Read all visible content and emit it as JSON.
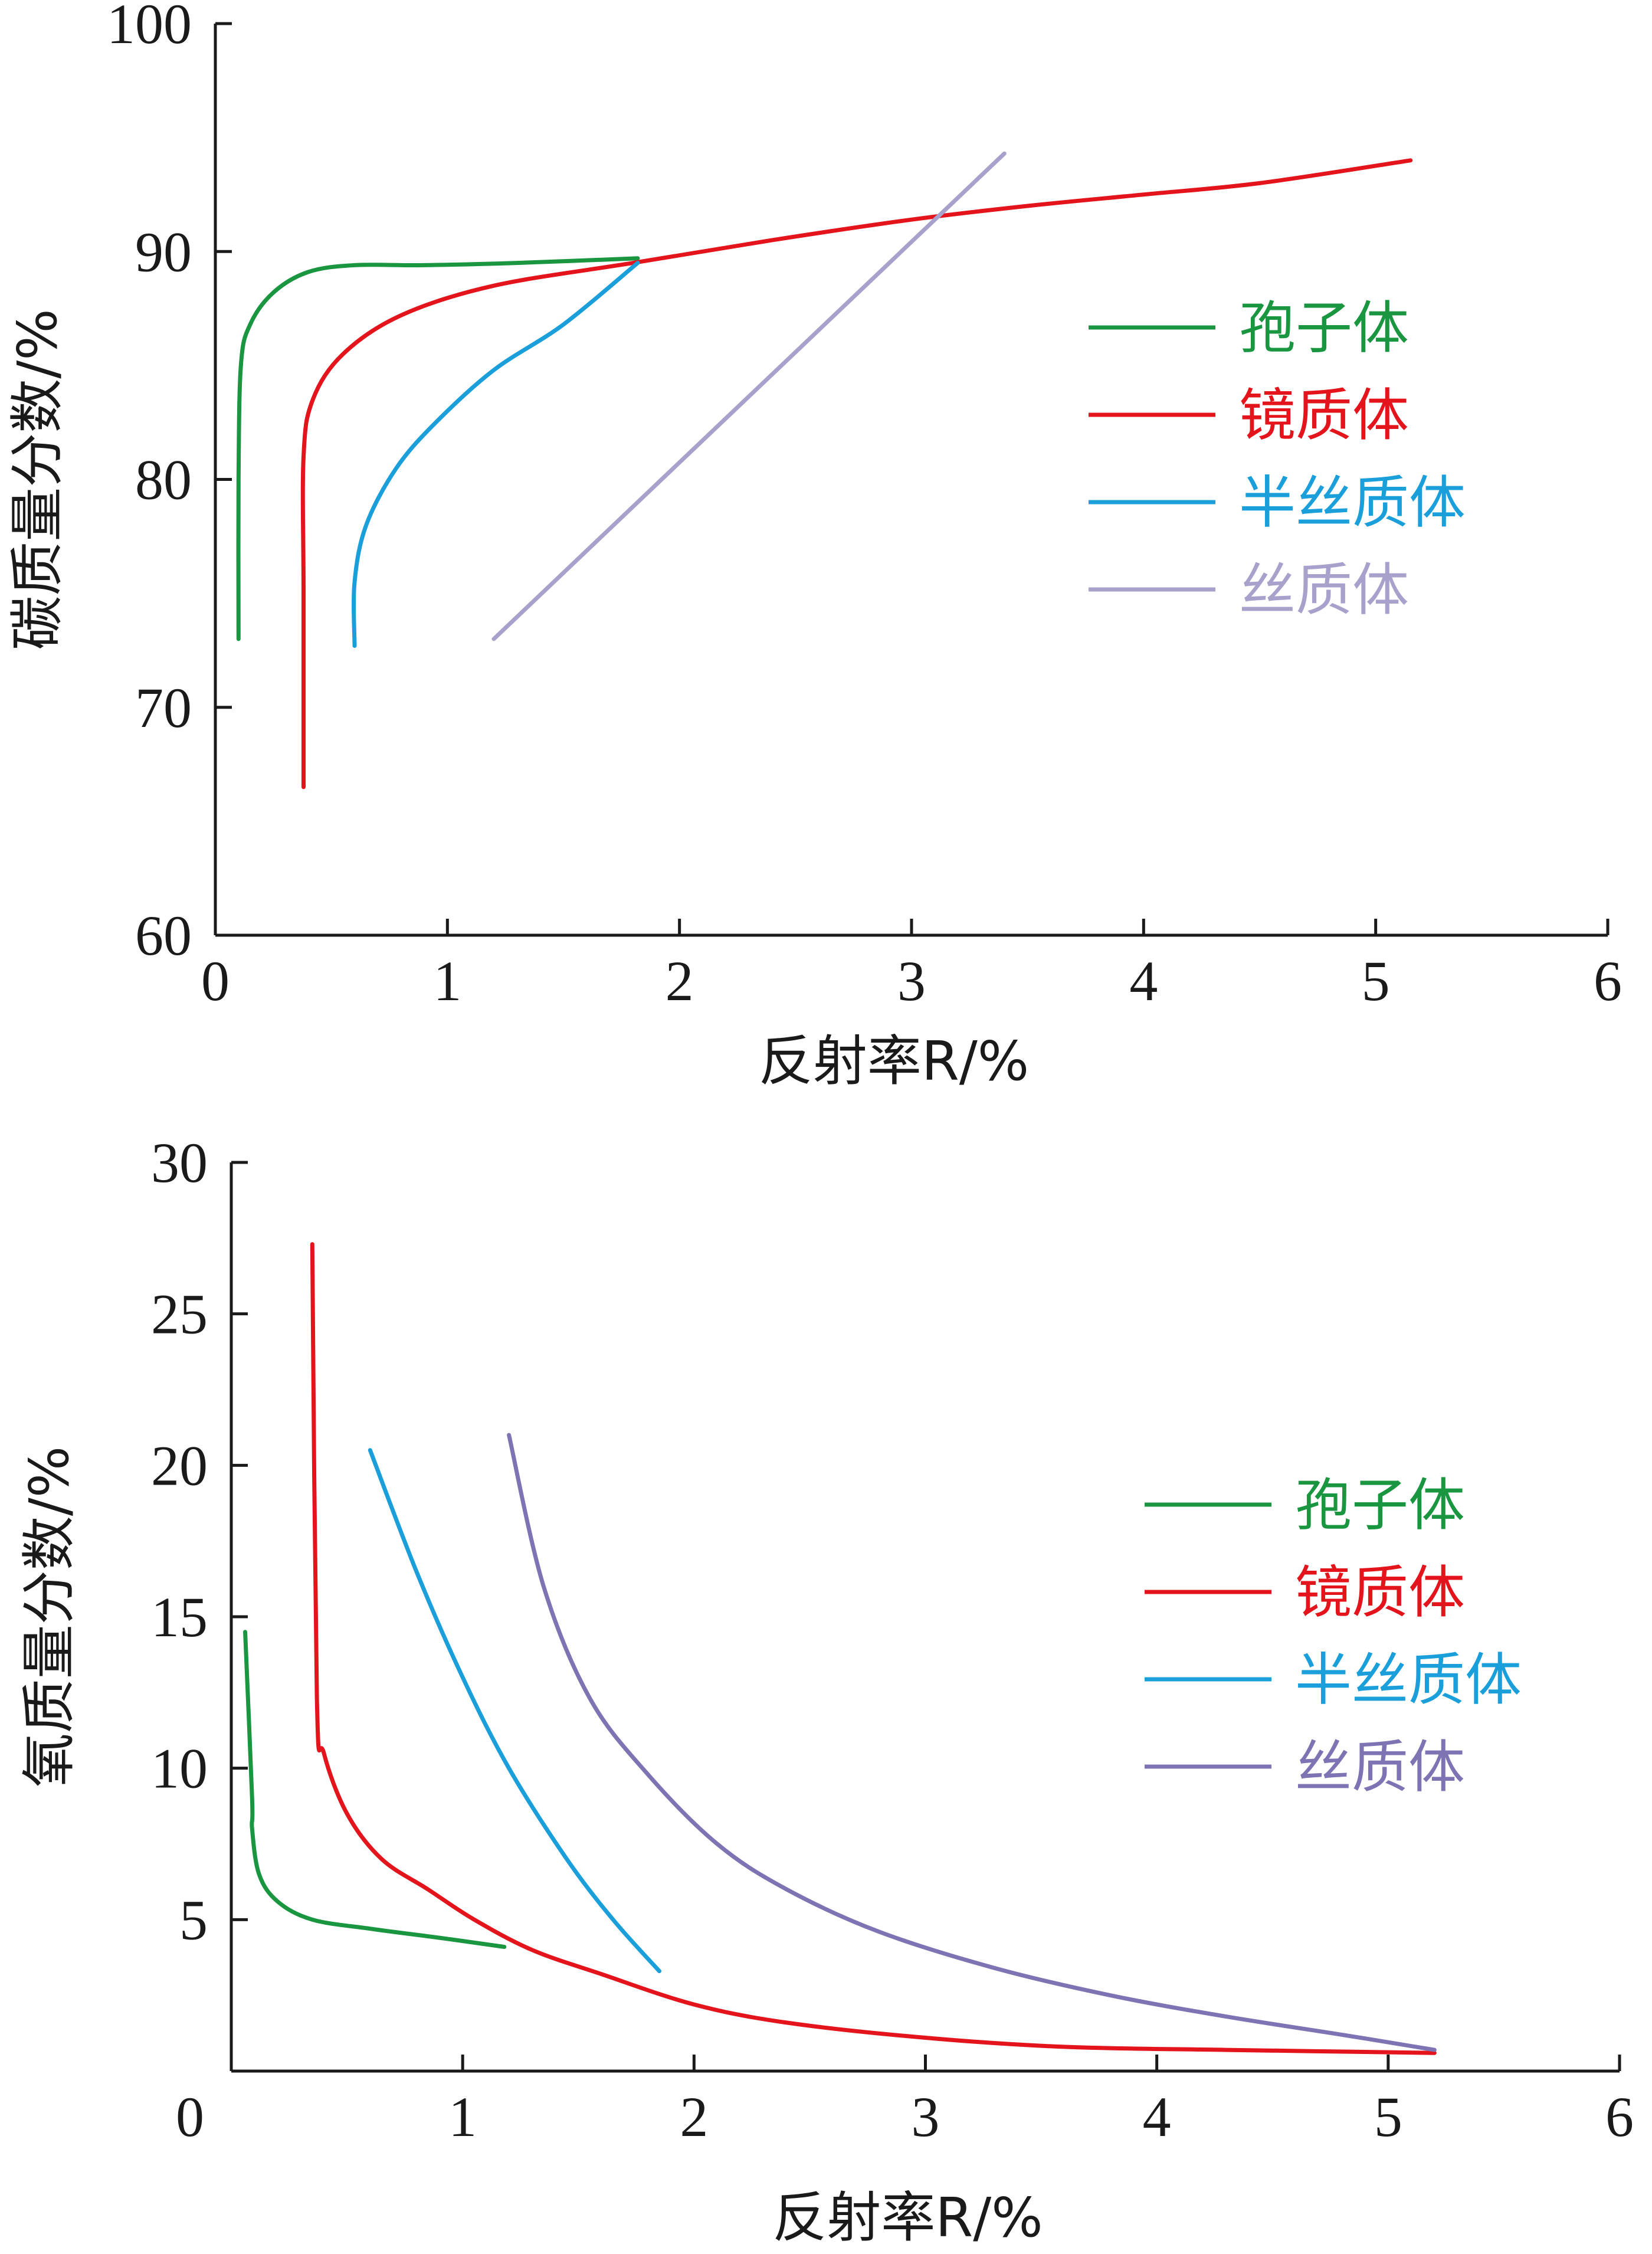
{
  "chart_data": [
    {
      "type": "line",
      "xlabel": "反射率R/%",
      "ylabel": "碳质量分数/%",
      "xlim": [
        0,
        6
      ],
      "ylim": [
        60,
        100
      ],
      "xticks": [
        "0",
        "1",
        "2",
        "3",
        "4",
        "5",
        "6"
      ],
      "yticks": [
        "60",
        "70",
        "80",
        "90",
        "100"
      ],
      "legend_position": "right",
      "series": [
        {
          "name": "孢子体",
          "color": "#1a9641",
          "points": [
            [
              0.1,
              73
            ],
            [
              0.1,
              80
            ],
            [
              0.11,
              85
            ],
            [
              0.15,
              86.8
            ],
            [
              0.25,
              88.2
            ],
            [
              0.4,
              89.1
            ],
            [
              0.6,
              89.4
            ],
            [
              0.9,
              89.4
            ],
            [
              1.3,
              89.5
            ],
            [
              1.82,
              89.7
            ]
          ]
        },
        {
          "name": "镜质体",
          "color": "#e3141b",
          "points": [
            [
              0.38,
              66.5
            ],
            [
              0.38,
              75
            ],
            [
              0.38,
              81
            ],
            [
              0.42,
              83.5
            ],
            [
              0.55,
              85.5
            ],
            [
              0.8,
              87.2
            ],
            [
              1.2,
              88.5
            ],
            [
              1.8,
              89.5
            ],
            [
              2.4,
              90.5
            ],
            [
              3,
              91.4
            ],
            [
              3.5,
              92
            ],
            [
              4,
              92.5
            ],
            [
              4.5,
              93
            ],
            [
              5.15,
              94
            ]
          ]
        },
        {
          "name": "半丝质体",
          "color": "#1a9fdb",
          "points": [
            [
              0.6,
              72.7
            ],
            [
              0.6,
              75.5
            ],
            [
              0.65,
              78
            ],
            [
              0.78,
              80.5
            ],
            [
              0.95,
              82.5
            ],
            [
              1.2,
              84.8
            ],
            [
              1.5,
              86.8
            ],
            [
              1.82,
              89.5
            ]
          ]
        },
        {
          "name": "丝质体",
          "color": "#a7a1cc",
          "points": [
            [
              1.2,
              73
            ],
            [
              3.4,
              94.3
            ]
          ]
        }
      ]
    },
    {
      "type": "line",
      "xlabel": "反射率R/%",
      "ylabel": "氧质量分数/%",
      "xlim": [
        0,
        6
      ],
      "ylim": [
        0,
        30
      ],
      "xticks": [
        "0",
        "1",
        "2",
        "3",
        "4",
        "5",
        "6"
      ],
      "yticks": [
        "5",
        "10",
        "15",
        "20",
        "25",
        "30"
      ],
      "legend_position": "right",
      "series": [
        {
          "name": "孢子体",
          "color": "#1a9641",
          "points": [
            [
              0.06,
              14.5
            ],
            [
              0.09,
              9
            ],
            [
              0.09,
              8
            ],
            [
              0.12,
              6.5
            ],
            [
              0.2,
              5.6
            ],
            [
              0.35,
              5
            ],
            [
              0.6,
              4.7
            ],
            [
              0.9,
              4.4
            ],
            [
              1.18,
              4.1
            ]
          ]
        },
        {
          "name": "镜质体",
          "color": "#e3141b",
          "points": [
            [
              0.35,
              27.3
            ],
            [
              0.37,
              12.3
            ],
            [
              0.4,
              10.5
            ],
            [
              0.5,
              8.5
            ],
            [
              0.65,
              7
            ],
            [
              0.85,
              6
            ],
            [
              1.05,
              5
            ],
            [
              1.3,
              4
            ],
            [
              1.6,
              3.2
            ],
            [
              2,
              2.2
            ],
            [
              2.4,
              1.6
            ],
            [
              3,
              1.1
            ],
            [
              3.6,
              0.8
            ],
            [
              4.3,
              0.7
            ],
            [
              5.2,
              0.6
            ]
          ]
        },
        {
          "name": "半丝质体",
          "color": "#1a9fdb",
          "points": [
            [
              0.6,
              20.5
            ],
            [
              0.8,
              16.5
            ],
            [
              1,
              13
            ],
            [
              1.2,
              10
            ],
            [
              1.45,
              7
            ],
            [
              1.65,
              5
            ],
            [
              1.85,
              3.3
            ]
          ]
        },
        {
          "name": "丝质体",
          "color": "#7e74b3",
          "points": [
            [
              1.2,
              21
            ],
            [
              1.35,
              16
            ],
            [
              1.55,
              12.3
            ],
            [
              1.8,
              9.8
            ],
            [
              2.1,
              7.5
            ],
            [
              2.4,
              6
            ],
            [
              2.8,
              4.6
            ],
            [
              3.3,
              3.4
            ],
            [
              3.8,
              2.5
            ],
            [
              4.3,
              1.8
            ],
            [
              4.8,
              1.2
            ],
            [
              5.2,
              0.7
            ]
          ]
        }
      ]
    }
  ]
}
